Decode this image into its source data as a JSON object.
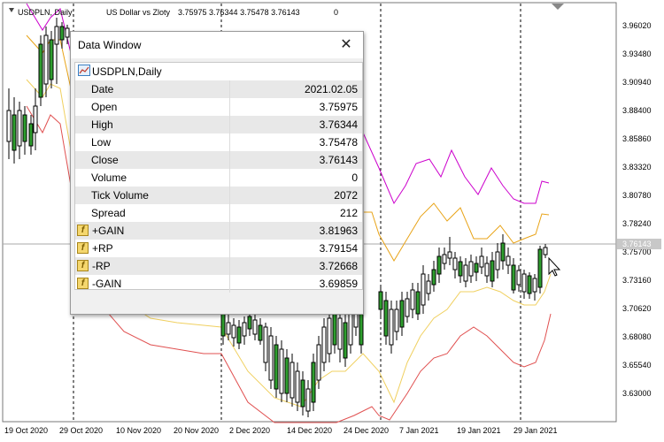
{
  "header": {
    "symbol": "USDPLN, Daily:",
    "description": "US Dollar vs Zloty",
    "ohlc": "3.75975 3.76344 3.75478 3.76143",
    "volume": "0"
  },
  "price_axis": {
    "labels": [
      "3.96020",
      "3.93480",
      "3.90940",
      "3.88400",
      "3.85860",
      "3.83320",
      "3.80780",
      "3.78240",
      "3.75700",
      "3.73160",
      "3.70620",
      "3.68080",
      "3.65540",
      "3.63000"
    ],
    "current_price": "3.76143"
  },
  "time_axis": {
    "labels": [
      "19 Oct 2020",
      "29 Oct 2020",
      "10 Nov 2020",
      "20 Nov 2020",
      "2 Dec 2020",
      "14 Dec 2020",
      "24 Dec 2020",
      "7 Jan 2021",
      "19 Jan 2021",
      "29 Jan 2021"
    ]
  },
  "data_window": {
    "title": "Data Window",
    "close_glyph": "✕",
    "symbol_row": "USDPLN,Daily",
    "rows": [
      {
        "label": "Date",
        "value": "2021.02.05"
      },
      {
        "label": "Open",
        "value": "3.75975"
      },
      {
        "label": "High",
        "value": "3.76344"
      },
      {
        "label": "Low",
        "value": "3.75478"
      },
      {
        "label": "Close",
        "value": "3.76143"
      },
      {
        "label": "Volume",
        "value": "0"
      },
      {
        "label": "Tick Volume",
        "value": "2072"
      },
      {
        "label": "Spread",
        "value": "212"
      }
    ],
    "indicators": [
      {
        "label": "+GAIN",
        "value": "3.81963",
        "icon": "f"
      },
      {
        "label": "+RP",
        "value": "3.79154",
        "icon": "f"
      },
      {
        "label": "-RP",
        "value": "3.72668",
        "icon": "f"
      },
      {
        "label": "-GAIN",
        "value": "3.69859",
        "icon": "f"
      }
    ]
  },
  "colors": {
    "bull": "#2e9e2e",
    "bear": "#ffffff",
    "candle_outline": "#000000",
    "gain_upper": "#cc00cc",
    "rp_upper": "#e8a317",
    "rp_lower": "#f0d060",
    "gain_lower": "#e05050",
    "grid": "#c8c8c8"
  }
}
